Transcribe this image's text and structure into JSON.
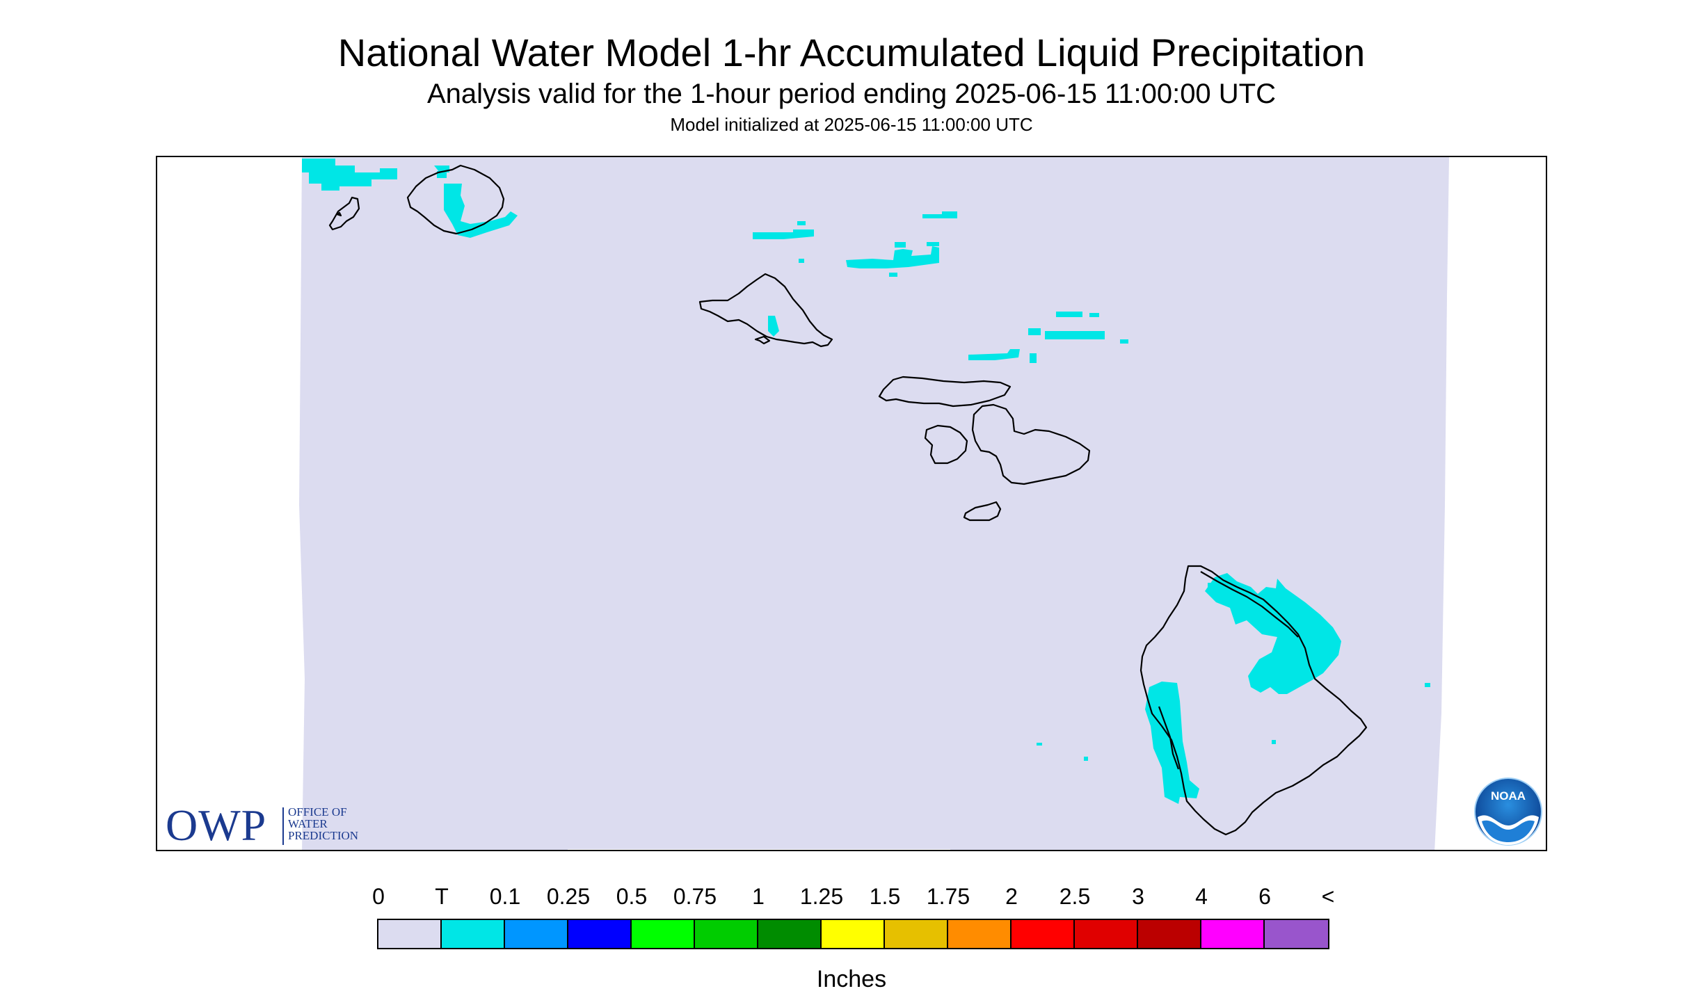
{
  "header": {
    "title": "National Water Model 1-hr Accumulated Liquid Precipitation",
    "subtitle": "Analysis valid for the 1-hour period ending 2025-06-15 11:00:00 UTC",
    "init": "Model initialized at 2025-06-15 11:00:00 UTC"
  },
  "map": {
    "region": "Hawaiian Islands",
    "background_color": "#dcdcf0",
    "coastline_color": "#000000",
    "precip_color": "#00e6e6"
  },
  "logos": {
    "owp_letters": "OWP",
    "owp_line1": "OFFICE OF",
    "owp_line2": "WATER",
    "owp_line3": "PREDICTION",
    "noaa": "NOAA"
  },
  "legend": {
    "labels": [
      "0",
      "T",
      "0.1",
      "0.25",
      "0.5",
      "0.75",
      "1",
      "1.25",
      "1.5",
      "1.75",
      "2",
      "2.5",
      "3",
      "4",
      "6",
      "<"
    ],
    "colors": [
      "#dcdcf0",
      "#00e6e6",
      "#0096ff",
      "#0000ff",
      "#00ff00",
      "#00cc00",
      "#008c00",
      "#ffff00",
      "#e6c000",
      "#ff8c00",
      "#ff0000",
      "#e00000",
      "#bb0000",
      "#ff00ff",
      "#9955cc"
    ],
    "units": "Inches"
  }
}
